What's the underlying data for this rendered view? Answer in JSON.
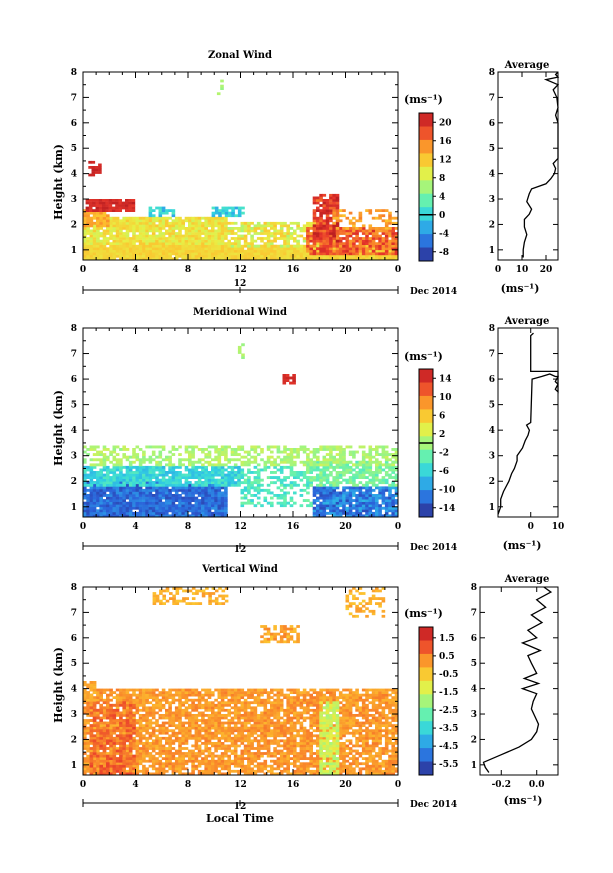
{
  "chart_data": [
    {
      "type": "heatmap",
      "title": "Zonal Wind",
      "ylabel": "Height (km)",
      "xlabel": "",
      "xticks": [
        "0",
        "4",
        "8",
        "12",
        "16",
        "20",
        "0"
      ],
      "yticks": [
        "1",
        "2",
        "3",
        "4",
        "5",
        "6",
        "7",
        "8"
      ],
      "date_labels": [
        "12",
        "Dec 2014"
      ],
      "xlim": [
        0,
        24
      ],
      "ylim": [
        0.6,
        8.0
      ],
      "colorbar": {
        "label": "(ms⁻¹)",
        "range": [
          -10,
          22
        ],
        "ticks": [
          "20",
          "16",
          "12",
          "8",
          "4",
          "0",
          "-4",
          "-8"
        ],
        "tick_values": [
          20,
          16,
          12,
          8,
          4,
          0,
          -4,
          -8
        ],
        "contour_level": 0
      },
      "colormap": [
        "#2c2a82",
        "#2b5fd8",
        "#2c9be8",
        "#32d3e0",
        "#5ef0b5",
        "#a6f57a",
        "#e8ef45",
        "#fdc12e",
        "#f9862a",
        "#e8372b",
        "#bb1e21"
      ],
      "patches": [
        {
          "t0": 0.0,
          "t1": 24.0,
          "h0": 0.6,
          "h1": 1.2,
          "v0": 10,
          "v1": 12,
          "density": 0.98
        },
        {
          "t0": 0.0,
          "t1": 11.0,
          "h0": 1.2,
          "h1": 2.3,
          "v0": 8,
          "v1": 12,
          "density": 0.9
        },
        {
          "t0": 0.0,
          "t1": 2.0,
          "h0": 1.9,
          "h1": 2.6,
          "v0": 12,
          "v1": 15,
          "density": 0.9
        },
        {
          "t0": 11.0,
          "t1": 18.0,
          "h0": 1.1,
          "h1": 2.1,
          "v0": 6,
          "v1": 12,
          "density": 0.75
        },
        {
          "t0": 17.0,
          "t1": 24.0,
          "h0": 0.8,
          "h1": 1.9,
          "v0": 14,
          "v1": 20,
          "density": 0.9
        },
        {
          "t0": 17.5,
          "t1": 19.5,
          "h0": 1.3,
          "h1": 3.2,
          "v0": 16,
          "v1": 22,
          "density": 0.85
        },
        {
          "t0": 19.0,
          "t1": 24.0,
          "h0": 1.8,
          "h1": 2.6,
          "v0": 12,
          "v1": 16,
          "density": 0.4
        },
        {
          "t0": 0.2,
          "t1": 3.8,
          "h0": 2.5,
          "h1": 3.0,
          "v0": 19,
          "v1": 22,
          "density": 0.9
        },
        {
          "t0": 5.0,
          "t1": 6.8,
          "h0": 2.3,
          "h1": 2.7,
          "v0": -3,
          "v1": 2,
          "density": 0.75
        },
        {
          "t0": 9.8,
          "t1": 12.2,
          "h0": 2.3,
          "h1": 2.7,
          "v0": -3,
          "v1": 2,
          "density": 0.75
        },
        {
          "t0": 0.4,
          "t1": 1.4,
          "h0": 3.9,
          "h1": 4.5,
          "v0": 20,
          "v1": 22,
          "density": 0.5
        },
        {
          "t0": 10.2,
          "t1": 10.6,
          "h0": 7.1,
          "h1": 7.8,
          "v0": 5,
          "v1": 7,
          "density": 0.4
        }
      ]
    },
    {
      "type": "heatmap",
      "title": "Meridional Wind",
      "ylabel": "Height (km)",
      "xlabel": "",
      "xticks": [
        "0",
        "4",
        "8",
        "12",
        "16",
        "20",
        "0"
      ],
      "yticks": [
        "1",
        "2",
        "3",
        "4",
        "5",
        "6",
        "7",
        "8"
      ],
      "date_labels": [
        "12",
        "Dec 2014"
      ],
      "xlim": [
        0,
        24
      ],
      "ylim": [
        0.6,
        8.0
      ],
      "colorbar": {
        "label": "(ms⁻¹)",
        "range": [
          -16,
          16
        ],
        "ticks": [
          "14",
          "10",
          "6",
          "2",
          "-2",
          "-6",
          "-10",
          "-14"
        ],
        "tick_values": [
          14,
          10,
          6,
          2,
          -2,
          -6,
          -10,
          -14
        ],
        "contour_level": 0
      },
      "colormap": [
        "#2c2a82",
        "#2b5fd8",
        "#2c9be8",
        "#32d3e0",
        "#5ef0b5",
        "#a6f57a",
        "#e8ef45",
        "#fdc12e",
        "#f9862a",
        "#e8372b",
        "#bb1e21"
      ],
      "patches": [
        {
          "t0": 0.0,
          "t1": 11.0,
          "h0": 0.6,
          "h1": 2.0,
          "v0": -14,
          "v1": -10,
          "density": 0.95
        },
        {
          "t0": 0.0,
          "t1": 12.0,
          "h0": 1.8,
          "h1": 2.6,
          "v0": -8,
          "v1": -4,
          "density": 0.85
        },
        {
          "t0": 12.0,
          "t1": 17.5,
          "h0": 1.0,
          "h1": 2.6,
          "v0": -6,
          "v1": -2,
          "density": 0.45
        },
        {
          "t0": 17.5,
          "t1": 24.0,
          "h0": 0.6,
          "h1": 1.8,
          "v0": -14,
          "v1": -8,
          "density": 0.85
        },
        {
          "t0": 17.0,
          "t1": 24.0,
          "h0": 1.8,
          "h1": 2.8,
          "v0": -4,
          "v1": 0,
          "density": 0.7
        },
        {
          "t0": 0.0,
          "t1": 24.0,
          "h0": 2.6,
          "h1": 3.4,
          "v0": -1,
          "v1": 2,
          "density": 0.55
        },
        {
          "t0": 15.2,
          "t1": 16.2,
          "h0": 5.8,
          "h1": 6.2,
          "v0": 13,
          "v1": 15,
          "density": 0.95
        },
        {
          "t0": 11.8,
          "t1": 12.1,
          "h0": 6.8,
          "h1": 7.5,
          "v0": -1,
          "v1": 1,
          "density": 0.4
        }
      ]
    },
    {
      "type": "heatmap",
      "title": "Vertical Wind",
      "ylabel": "Height (km)",
      "xlabel": "Local Time",
      "xticks": [
        "0",
        "4",
        "8",
        "12",
        "16",
        "20",
        "0"
      ],
      "yticks": [
        "1",
        "2",
        "3",
        "4",
        "5",
        "6",
        "7",
        "8"
      ],
      "date_labels": [
        "12",
        "Dec 2014"
      ],
      "xlim": [
        0,
        24
      ],
      "ylim": [
        0.6,
        8.0
      ],
      "colorbar": {
        "label": "(ms⁻¹)",
        "range": [
          -6.1,
          2.1
        ],
        "ticks": [
          "1.5",
          "0.5",
          "-0.5",
          "-1.5",
          "-2.5",
          "-3.5",
          "-4.5",
          "-5.5"
        ],
        "tick_values": [
          1.5,
          0.5,
          -0.5,
          -1.5,
          -2.5,
          -3.5,
          -4.5,
          -5.5
        ],
        "contour_level": null
      },
      "colormap": [
        "#2c2a82",
        "#2b5fd8",
        "#2c9be8",
        "#32d3e0",
        "#5ef0b5",
        "#a6f57a",
        "#e8ef45",
        "#fdc12e",
        "#f9862a",
        "#e8372b",
        "#bb1e21"
      ],
      "patches": [
        {
          "t0": 0.0,
          "t1": 24.0,
          "h0": 0.6,
          "h1": 4.0,
          "v0": -0.2,
          "v1": 0.6,
          "density": 0.8
        },
        {
          "t0": 0.5,
          "t1": 4.0,
          "h0": 0.6,
          "h1": 3.5,
          "v0": 0.4,
          "v1": 1.2,
          "density": 0.6
        },
        {
          "t0": 0.0,
          "t1": 1.0,
          "h0": 3.5,
          "h1": 4.3,
          "v0": -0.3,
          "v1": 0.3,
          "density": 0.8
        },
        {
          "t0": 18.0,
          "t1": 19.5,
          "h0": 0.6,
          "h1": 3.5,
          "v0": -2.0,
          "v1": -1.0,
          "density": 0.8
        },
        {
          "t0": 13.5,
          "t1": 16.5,
          "h0": 5.8,
          "h1": 6.5,
          "v0": -0.5,
          "v1": 0.5,
          "density": 0.6
        },
        {
          "t0": 5.3,
          "t1": 11.0,
          "h0": 7.3,
          "h1": 8.0,
          "v0": -0.5,
          "v1": 0.2,
          "density": 0.45
        },
        {
          "t0": 20.0,
          "t1": 23.0,
          "h0": 6.8,
          "h1": 8.0,
          "v0": -0.5,
          "v1": 0.2,
          "density": 0.35
        }
      ]
    }
  ],
  "profiles": [
    {
      "title": "Average",
      "xlabel": "(ms⁻¹)",
      "xticks": [
        "0",
        "10",
        "20"
      ],
      "xtick_values": [
        0,
        10,
        20
      ],
      "xlim": [
        0,
        25
      ],
      "ylim": [
        0.6,
        8.0
      ],
      "yticks": [
        "1",
        "2",
        "3",
        "4",
        "5",
        "6",
        "7",
        "8"
      ],
      "points": [
        [
          10.5,
          0.7
        ],
        [
          10.5,
          1.0
        ],
        [
          11,
          1.3
        ],
        [
          12,
          1.6
        ],
        [
          11,
          1.9
        ],
        [
          11,
          2.2
        ],
        [
          13,
          2.4
        ],
        [
          14,
          2.6
        ],
        [
          12,
          2.9
        ],
        [
          13,
          3.2
        ],
        [
          14,
          3.4
        ],
        [
          20,
          3.6
        ],
        [
          22,
          3.8
        ],
        [
          23.5,
          4.0
        ],
        [
          24,
          4.2
        ],
        [
          23,
          4.4
        ],
        [
          25,
          4.6
        ],
        [
          25,
          5.0
        ],
        [
          25,
          5.5
        ],
        [
          25,
          6.0
        ],
        [
          24,
          6.3
        ],
        [
          25,
          6.6
        ],
        [
          24.5,
          7.0
        ],
        [
          23,
          7.3
        ],
        [
          25,
          7.5
        ],
        [
          20,
          7.7
        ],
        [
          25,
          7.8
        ],
        [
          24,
          7.9
        ],
        [
          25,
          8.0
        ]
      ]
    },
    {
      "title": "Average",
      "xlabel": "(ms⁻¹)",
      "xticks": [
        "0",
        "10"
      ],
      "xtick_values": [
        0,
        10
      ],
      "xlim": [
        -12,
        10
      ],
      "ylim": [
        0.6,
        8.0
      ],
      "yticks": [
        "1",
        "2",
        "3",
        "4",
        "5",
        "6",
        "7",
        "8"
      ],
      "points": [
        [
          -12,
          0.7
        ],
        [
          -11,
          1.0
        ],
        [
          -11,
          1.3
        ],
        [
          -10,
          1.6
        ],
        [
          -8,
          2.0
        ],
        [
          -7,
          2.3
        ],
        [
          -6,
          2.5
        ],
        [
          -5,
          2.8
        ],
        [
          -5,
          3.0
        ],
        [
          -3,
          3.3
        ],
        [
          -2,
          3.6
        ],
        [
          -1,
          3.8
        ],
        [
          -0.5,
          4.0
        ],
        [
          -1.5,
          4.2
        ],
        [
          0,
          4.3
        ],
        [
          0.5,
          6.0
        ],
        [
          4,
          6.1
        ],
        [
          7,
          6.2
        ],
        [
          9,
          6.1
        ],
        [
          10,
          6.1
        ],
        [
          9,
          5.9
        ],
        [
          10,
          5.8
        ],
        [
          9,
          5.6
        ],
        [
          10,
          5.5
        ],
        [
          10,
          6.3
        ],
        [
          0,
          6.3
        ],
        [
          0,
          7.7
        ],
        [
          1,
          7.8
        ]
      ]
    },
    {
      "title": "Average",
      "xlabel": "(ms⁻¹)",
      "xticks": [
        "-0.2",
        "0.0"
      ],
      "xtick_values": [
        -0.2,
        0.0
      ],
      "xlim": [
        -0.32,
        0.12
      ],
      "ylim": [
        0.6,
        8.0
      ],
      "yticks": [
        "1",
        "2",
        "3",
        "4",
        "5",
        "6",
        "7",
        "8"
      ],
      "points": [
        [
          -0.27,
          0.7
        ],
        [
          -0.29,
          0.9
        ],
        [
          -0.3,
          1.1
        ],
        [
          -0.2,
          1.4
        ],
        [
          -0.1,
          1.7
        ],
        [
          -0.03,
          2.0
        ],
        [
          0.0,
          2.3
        ],
        [
          0.01,
          2.6
        ],
        [
          -0.01,
          2.9
        ],
        [
          -0.03,
          3.2
        ],
        [
          -0.02,
          3.5
        ],
        [
          0.0,
          3.8
        ],
        [
          -0.08,
          4.0
        ],
        [
          0.01,
          4.2
        ],
        [
          -0.07,
          4.4
        ],
        [
          0.0,
          4.6
        ],
        [
          -0.03,
          5.0
        ],
        [
          -0.05,
          5.3
        ],
        [
          0.02,
          5.5
        ],
        [
          -0.08,
          5.8
        ],
        [
          0.0,
          6.0
        ],
        [
          -0.05,
          6.3
        ],
        [
          0.03,
          6.6
        ],
        [
          -0.03,
          6.9
        ],
        [
          0.05,
          7.2
        ],
        [
          0.0,
          7.5
        ],
        [
          0.08,
          7.8
        ],
        [
          0.04,
          8.0
        ]
      ]
    }
  ]
}
